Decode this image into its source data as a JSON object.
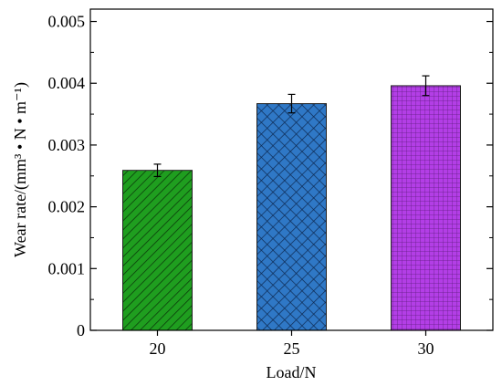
{
  "chart_data": {
    "type": "bar",
    "title": "",
    "xlabel": "Load/N",
    "ylabel": "Wear rate/(mm³ • N • m⁻¹)",
    "categories": [
      "20",
      "25",
      "30"
    ],
    "values": [
      0.00259,
      0.00367,
      0.00396
    ],
    "error": [
      0.0001,
      0.00015,
      0.00016
    ],
    "ylim": [
      0,
      0.0052
    ],
    "yticks": [
      0,
      0.001,
      0.002,
      0.003,
      0.004,
      0.005
    ],
    "ytick_labels": [
      "0",
      "0.001",
      "0.002",
      "0.003",
      "0.004",
      "0.005"
    ],
    "grid": false,
    "bar_colors": [
      "#1f9e1f",
      "#2f78c6",
      "#b33ee6"
    ],
    "bar_patterns": [
      "diagonal-hatch",
      "crosshatch",
      "grid"
    ]
  }
}
